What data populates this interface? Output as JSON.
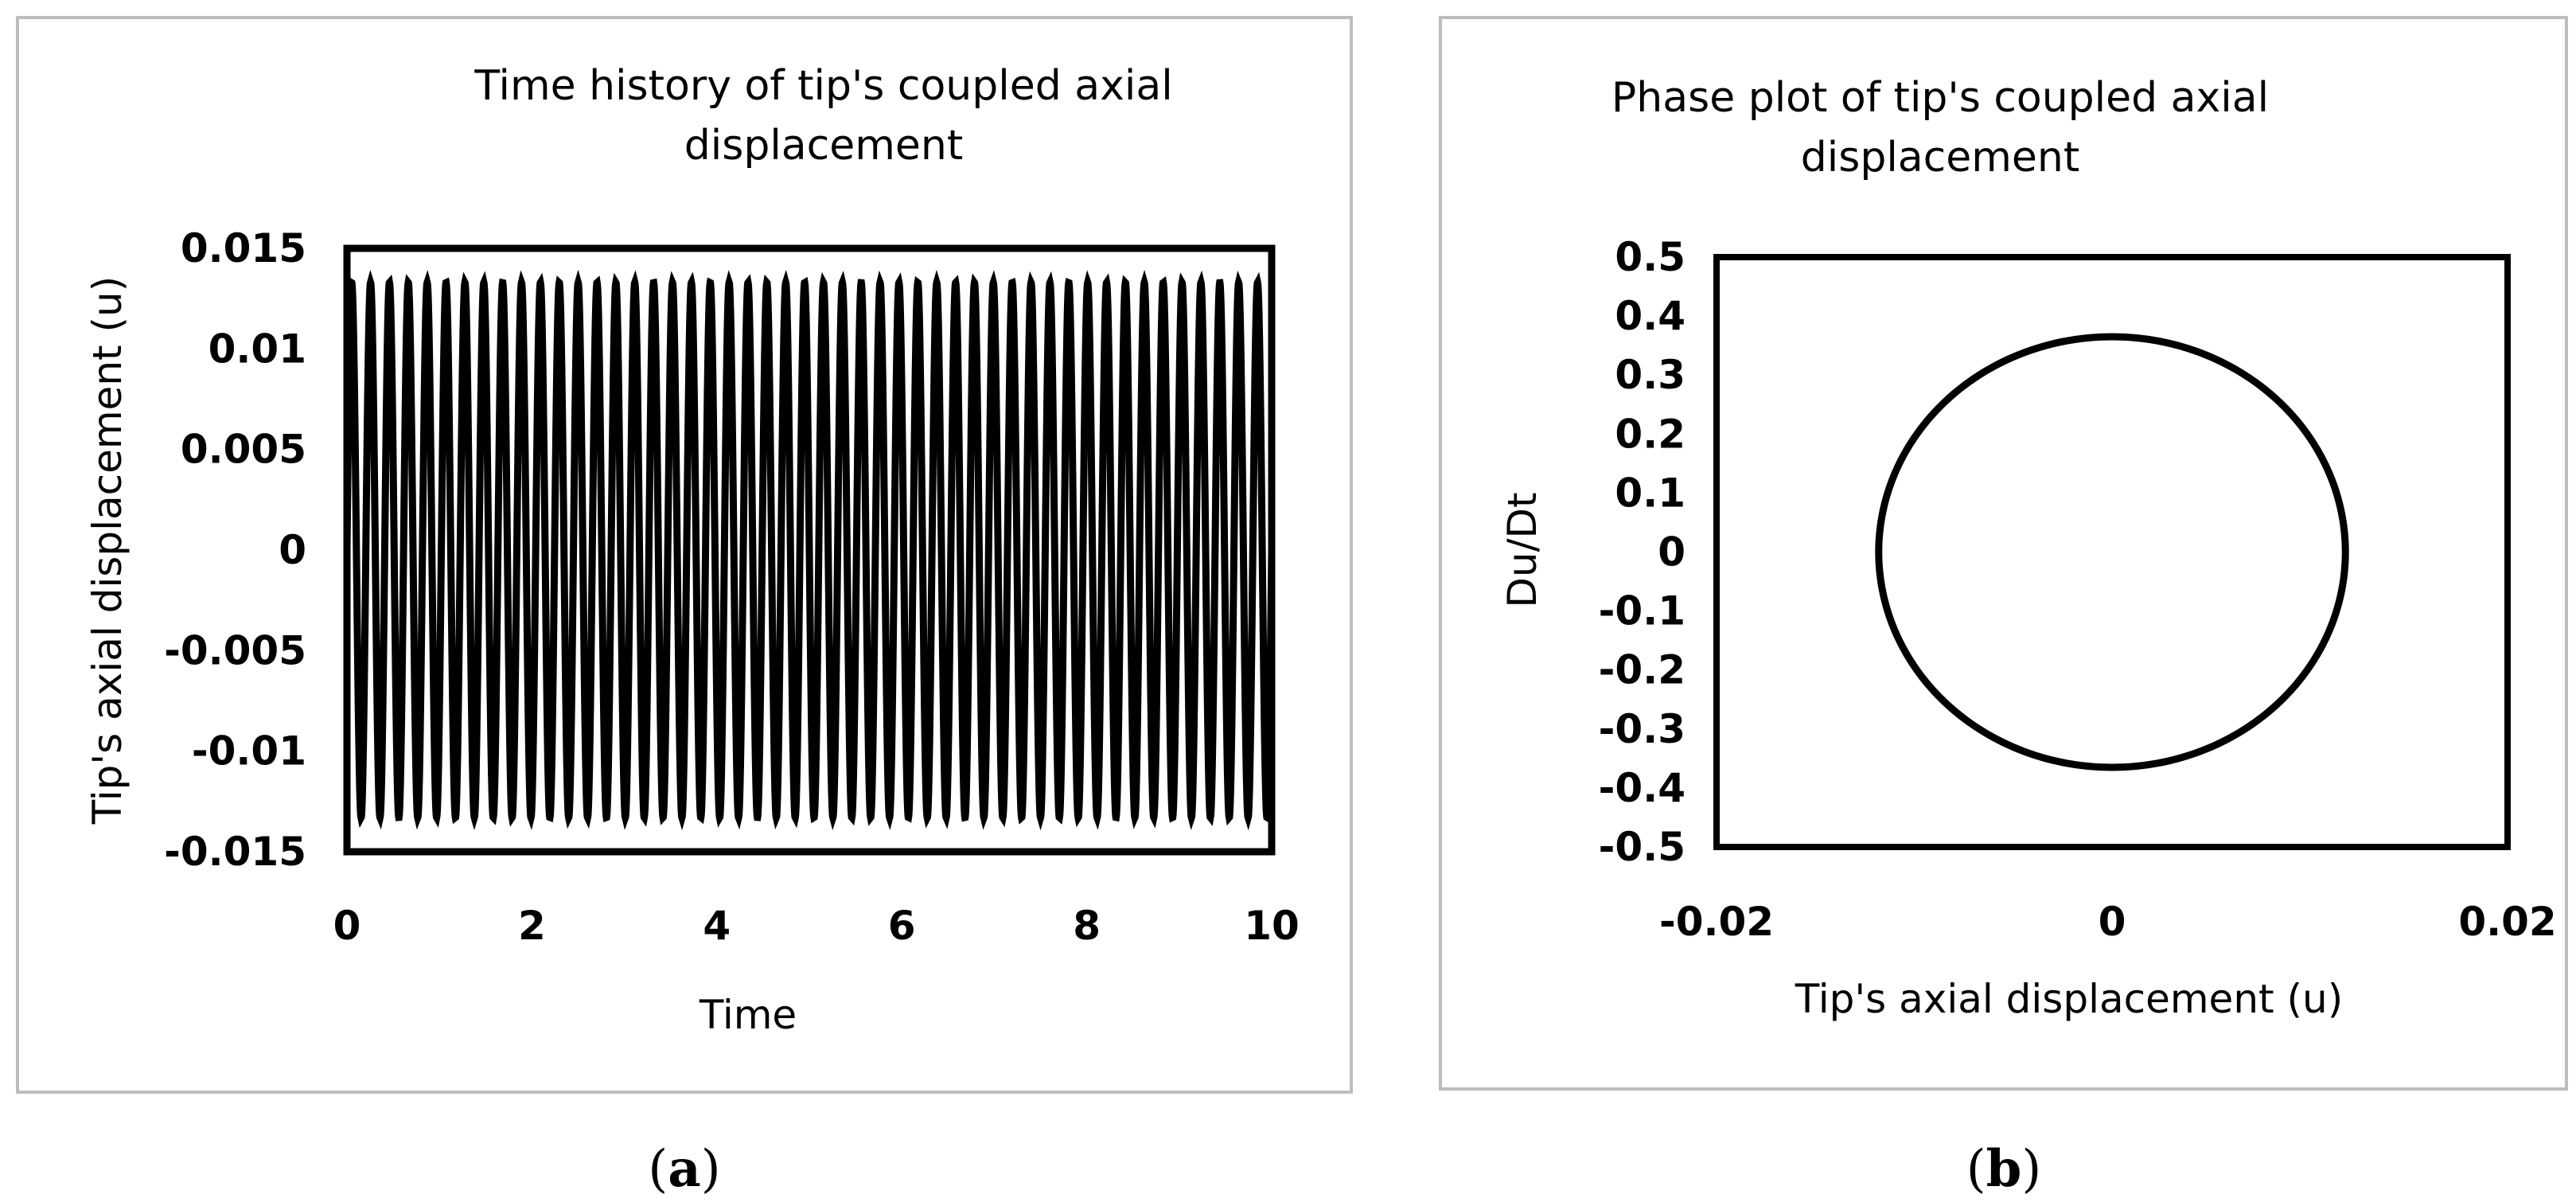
{
  "charts": [
    {
      "caption_letter": "a",
      "chart_data": {
        "type": "line",
        "title_line1": "Time history of tip's coupled axial",
        "title_line2": "displacement",
        "xlabel": "Time",
        "ylabel": "Tip's axial displacement (u)",
        "xlim": [
          0,
          10
        ],
        "ylim": [
          -0.015,
          0.015
        ],
        "x_ticks": [
          "0",
          "2",
          "4",
          "6",
          "8",
          "10"
        ],
        "y_ticks": [
          "0.015",
          "0.01",
          "0.005",
          "0",
          "-0.005",
          "-0.01",
          "-0.015"
        ],
        "series": [
          {
            "amplitude": 0.0133,
            "frequency": 4.9,
            "phase": 0,
            "t_start": 0,
            "t_end": 10,
            "color": "#000000"
          }
        ],
        "grid": false,
        "legend": "none"
      }
    },
    {
      "caption_letter": "b",
      "chart_data": {
        "type": "line",
        "title_line1": "Phase plot of tip's coupled axial",
        "title_line2": "displacement",
        "xlabel": "Tip's axial displacement (u)",
        "ylabel": "Du/Dt",
        "xlim": [
          -0.02,
          0.02
        ],
        "ylim": [
          -0.5,
          0.5
        ],
        "x_ticks": [
          "-0.02",
          "0",
          "0.02"
        ],
        "y_ticks": [
          "0.5",
          "0.4",
          "0.3",
          "0.2",
          "0.1",
          "0",
          "-0.1",
          "-0.2",
          "-0.3",
          "-0.4",
          "-0.5"
        ],
        "series": [
          {
            "u_amplitude": 0.0118,
            "v_amplitude": 0.365,
            "color": "#000000"
          }
        ],
        "grid": false,
        "legend": "none"
      }
    }
  ]
}
